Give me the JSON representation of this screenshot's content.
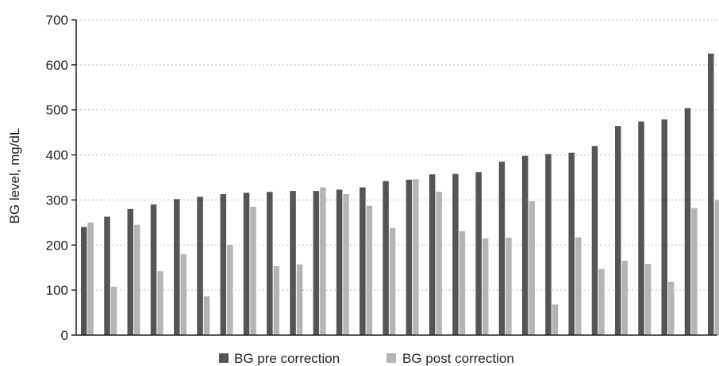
{
  "chart_data": {
    "type": "bar",
    "ylabel": "BG level, mg/dL",
    "ylim": [
      0,
      700
    ],
    "yticks": [
      0,
      100,
      200,
      300,
      400,
      500,
      600,
      700
    ],
    "grid": true,
    "legend": "bottom",
    "series": [
      {
        "name": "BG pre correction",
        "color": "#555555",
        "values": [
          240,
          263,
          280,
          290,
          302,
          307,
          313,
          316,
          318,
          320,
          320,
          323,
          328,
          342,
          345,
          357,
          358,
          362,
          385,
          398,
          402,
          405,
          420,
          464,
          474,
          479,
          504,
          625
        ]
      },
      {
        "name": "BG post correction",
        "color": "#b5b5b5",
        "values": [
          250,
          107,
          245,
          142,
          180,
          86,
          200,
          285,
          153,
          157,
          328,
          313,
          287,
          238,
          346,
          318,
          231,
          215,
          216,
          297,
          68,
          217,
          147,
          165,
          158,
          118,
          282,
          300
        ]
      }
    ]
  }
}
